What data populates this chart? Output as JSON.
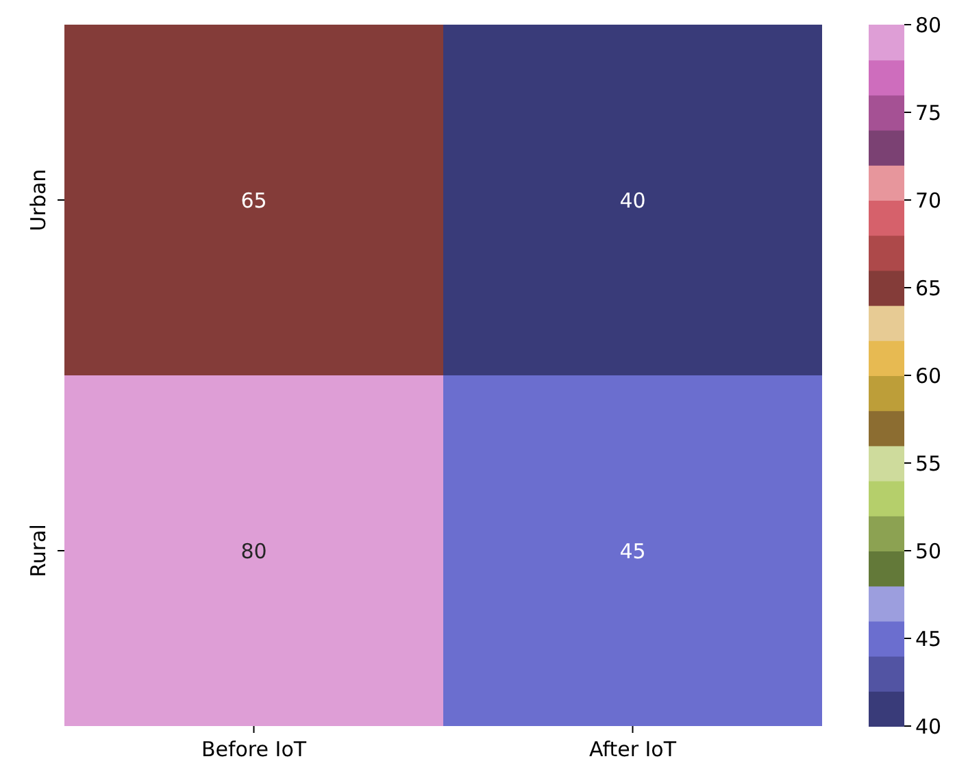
{
  "chart_data": {
    "type": "heatmap",
    "categories": [
      "Before IoT",
      "After IoT"
    ],
    "y_categories": [
      "Urban",
      "Rural"
    ],
    "cells": [
      [
        65,
        40
      ],
      [
        80,
        45
      ]
    ],
    "data_labels": true,
    "clim": [
      40,
      80
    ],
    "cticks": [
      40,
      45,
      50,
      55,
      60,
      65,
      70,
      75,
      80
    ]
  }
}
